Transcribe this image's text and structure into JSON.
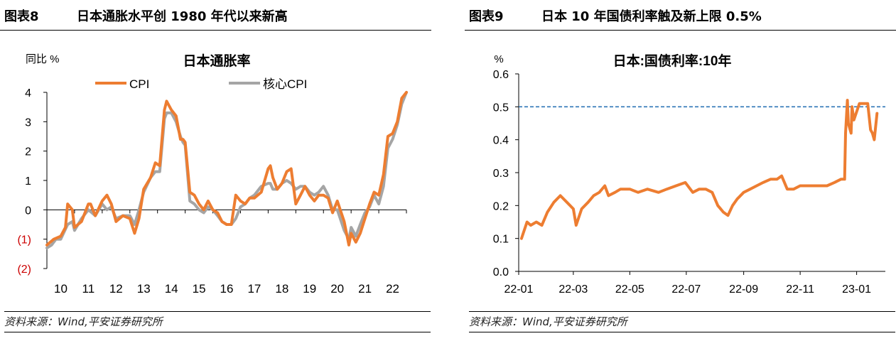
{
  "figures": [
    {
      "number": "图表8",
      "title": "日本通胀水平创 1980 年代以来新高",
      "source": "资料来源：Wind,平安证券研究所"
    },
    {
      "number": "图表9",
      "title": "日本 10 年国债利率触及新上限 0.5%",
      "source": "资料来源：Wind,平安证券研究所"
    }
  ],
  "chart_data": [
    {
      "type": "line",
      "title": "日本通胀率",
      "ylabel": "同比 %",
      "ylim": [
        -2,
        4
      ],
      "yticks": [
        -2,
        -1,
        0,
        1,
        2,
        3,
        4
      ],
      "ytick_labels": [
        "(2)",
        "(1)",
        "0",
        "1",
        "2",
        "3",
        "4"
      ],
      "negative_tick_color": "#cc0000",
      "xlim": [
        2010,
        2023
      ],
      "xticks": [
        2010,
        2011,
        2012,
        2013,
        2014,
        2015,
        2016,
        2017,
        2018,
        2019,
        2020,
        2021,
        2022
      ],
      "xtick_labels": [
        "10",
        "11",
        "12",
        "13",
        "14",
        "15",
        "16",
        "17",
        "18",
        "19",
        "20",
        "21",
        "22"
      ],
      "legend_position": "top",
      "grid": false,
      "series": [
        {
          "name": "CPI",
          "color": "#ED7D31",
          "points": [
            [
              2010.0,
              -1.2
            ],
            [
              2010.25,
              -1.0
            ],
            [
              2010.5,
              -0.9
            ],
            [
              2010.67,
              -0.6
            ],
            [
              2010.75,
              0.2
            ],
            [
              2010.92,
              0.0
            ],
            [
              2011.0,
              -0.6
            ],
            [
              2011.25,
              -0.4
            ],
            [
              2011.5,
              0.2
            ],
            [
              2011.58,
              0.2
            ],
            [
              2011.75,
              -0.2
            ],
            [
              2012.0,
              0.3
            ],
            [
              2012.17,
              0.5
            ],
            [
              2012.33,
              0.2
            ],
            [
              2012.5,
              -0.4
            ],
            [
              2012.75,
              -0.2
            ],
            [
              2013.0,
              -0.3
            ],
            [
              2013.17,
              -0.8
            ],
            [
              2013.33,
              -0.3
            ],
            [
              2013.5,
              0.7
            ],
            [
              2013.75,
              1.1
            ],
            [
              2013.92,
              1.6
            ],
            [
              2014.08,
              1.5
            ],
            [
              2014.25,
              3.4
            ],
            [
              2014.33,
              3.7
            ],
            [
              2014.5,
              3.4
            ],
            [
              2014.67,
              3.2
            ],
            [
              2014.83,
              2.4
            ],
            [
              2014.92,
              2.4
            ],
            [
              2015.0,
              2.3
            ],
            [
              2015.17,
              0.6
            ],
            [
              2015.33,
              0.5
            ],
            [
              2015.5,
              0.2
            ],
            [
              2015.67,
              0.0
            ],
            [
              2015.83,
              0.3
            ],
            [
              2016.0,
              0.0
            ],
            [
              2016.17,
              -0.1
            ],
            [
              2016.33,
              -0.4
            ],
            [
              2016.5,
              -0.5
            ],
            [
              2016.67,
              -0.5
            ],
            [
              2016.83,
              0.5
            ],
            [
              2017.0,
              0.3
            ],
            [
              2017.17,
              0.2
            ],
            [
              2017.33,
              0.4
            ],
            [
              2017.5,
              0.4
            ],
            [
              2017.75,
              0.6
            ],
            [
              2018.0,
              1.4
            ],
            [
              2018.08,
              1.5
            ],
            [
              2018.17,
              1.1
            ],
            [
              2018.33,
              0.7
            ],
            [
              2018.5,
              0.9
            ],
            [
              2018.67,
              1.3
            ],
            [
              2018.83,
              1.4
            ],
            [
              2019.0,
              0.2
            ],
            [
              2019.17,
              0.5
            ],
            [
              2019.33,
              0.8
            ],
            [
              2019.5,
              0.5
            ],
            [
              2019.67,
              0.3
            ],
            [
              2019.83,
              0.5
            ],
            [
              2020.0,
              0.5
            ],
            [
              2020.17,
              0.4
            ],
            [
              2020.33,
              -0.1
            ],
            [
              2020.5,
              0.3
            ],
            [
              2020.75,
              -0.4
            ],
            [
              2020.92,
              -1.2
            ],
            [
              2021.0,
              -0.8
            ],
            [
              2021.17,
              -1.1
            ],
            [
              2021.33,
              -0.8
            ],
            [
              2021.5,
              -0.3
            ],
            [
              2021.67,
              0.2
            ],
            [
              2021.83,
              0.6
            ],
            [
              2022.0,
              0.5
            ],
            [
              2022.17,
              1.2
            ],
            [
              2022.33,
              2.5
            ],
            [
              2022.5,
              2.6
            ],
            [
              2022.67,
              3.0
            ],
            [
              2022.83,
              3.8
            ],
            [
              2023.0,
              4.0
            ]
          ]
        },
        {
          "name": "核心CPI",
          "color": "#A5A5A5",
          "points": [
            [
              2010.0,
              -1.3
            ],
            [
              2010.17,
              -1.2
            ],
            [
              2010.33,
              -1.0
            ],
            [
              2010.5,
              -1.0
            ],
            [
              2010.75,
              -0.5
            ],
            [
              2010.92,
              -0.4
            ],
            [
              2011.0,
              -0.7
            ],
            [
              2011.25,
              -0.3
            ],
            [
              2011.5,
              0.0
            ],
            [
              2011.75,
              -0.2
            ],
            [
              2012.0,
              0.2
            ],
            [
              2012.17,
              0.0
            ],
            [
              2012.33,
              0.1
            ],
            [
              2012.5,
              -0.3
            ],
            [
              2012.75,
              -0.2
            ],
            [
              2013.0,
              -0.2
            ],
            [
              2013.17,
              -0.5
            ],
            [
              2013.33,
              0.0
            ],
            [
              2013.5,
              0.6
            ],
            [
              2013.75,
              1.1
            ],
            [
              2013.92,
              1.3
            ],
            [
              2014.08,
              1.3
            ],
            [
              2014.25,
              3.1
            ],
            [
              2014.33,
              3.3
            ],
            [
              2014.5,
              3.3
            ],
            [
              2014.67,
              3.0
            ],
            [
              2014.83,
              2.5
            ],
            [
              2014.92,
              2.3
            ],
            [
              2015.0,
              2.2
            ],
            [
              2015.17,
              0.3
            ],
            [
              2015.33,
              0.2
            ],
            [
              2015.5,
              0.0
            ],
            [
              2015.67,
              -0.1
            ],
            [
              2015.83,
              0.1
            ],
            [
              2016.0,
              0.0
            ],
            [
              2016.17,
              -0.2
            ],
            [
              2016.33,
              -0.4
            ],
            [
              2016.5,
              -0.5
            ],
            [
              2016.67,
              -0.5
            ],
            [
              2016.83,
              -0.3
            ],
            [
              2017.0,
              0.1
            ],
            [
              2017.17,
              0.2
            ],
            [
              2017.33,
              0.4
            ],
            [
              2017.5,
              0.5
            ],
            [
              2017.75,
              0.8
            ],
            [
              2018.0,
              0.9
            ],
            [
              2018.08,
              0.9
            ],
            [
              2018.17,
              0.7
            ],
            [
              2018.33,
              0.7
            ],
            [
              2018.5,
              0.9
            ],
            [
              2018.67,
              1.0
            ],
            [
              2018.83,
              0.9
            ],
            [
              2019.0,
              0.7
            ],
            [
              2019.17,
              0.8
            ],
            [
              2019.33,
              0.8
            ],
            [
              2019.5,
              0.6
            ],
            [
              2019.67,
              0.5
            ],
            [
              2019.83,
              0.6
            ],
            [
              2020.0,
              0.8
            ],
            [
              2020.17,
              0.5
            ],
            [
              2020.33,
              0.0
            ],
            [
              2020.5,
              0.0
            ],
            [
              2020.75,
              -0.7
            ],
            [
              2020.92,
              -1.0
            ],
            [
              2021.0,
              -0.6
            ],
            [
              2021.17,
              -0.9
            ],
            [
              2021.33,
              -0.5
            ],
            [
              2021.5,
              -0.1
            ],
            [
              2021.67,
              0.1
            ],
            [
              2021.83,
              0.5
            ],
            [
              2022.0,
              0.2
            ],
            [
              2022.17,
              0.8
            ],
            [
              2022.33,
              2.1
            ],
            [
              2022.5,
              2.4
            ],
            [
              2022.67,
              2.9
            ],
            [
              2022.83,
              3.6
            ],
            [
              2023.0,
              4.0
            ]
          ]
        }
      ]
    },
    {
      "type": "line",
      "title": "日本:国债利率:10年",
      "ylabel": "%",
      "ylim": [
        0.0,
        0.6
      ],
      "yticks": [
        0.0,
        0.1,
        0.2,
        0.3,
        0.4,
        0.5,
        0.6
      ],
      "ytick_labels": [
        "0.0",
        "0.1",
        "0.2",
        "0.3",
        "0.4",
        "0.5",
        "0.6"
      ],
      "xlim": [
        "2022-01-01",
        "2023-02-01"
      ],
      "xticks": [
        "2022-01-01",
        "2022-03-01",
        "2022-05-01",
        "2022-07-01",
        "2022-09-01",
        "2022-11-01",
        "2023-01-01"
      ],
      "xtick_labels": [
        "22-01",
        "22-03",
        "22-05",
        "22-07",
        "22-09",
        "22-11",
        "23-01"
      ],
      "grid": false,
      "reference_line": {
        "value": 0.5,
        "color": "#2E75B6",
        "style": "dashed"
      },
      "series": [
        {
          "name": "",
          "color": "#ED7D31",
          "points": [
            [
              "2022-01-04",
              0.1
            ],
            [
              "2022-01-10",
              0.15
            ],
            [
              "2022-01-14",
              0.14
            ],
            [
              "2022-01-20",
              0.15
            ],
            [
              "2022-01-26",
              0.14
            ],
            [
              "2022-02-01",
              0.18
            ],
            [
              "2022-02-08",
              0.21
            ],
            [
              "2022-02-15",
              0.23
            ],
            [
              "2022-02-22",
              0.21
            ],
            [
              "2022-03-01",
              0.19
            ],
            [
              "2022-03-04",
              0.14
            ],
            [
              "2022-03-10",
              0.19
            ],
            [
              "2022-03-17",
              0.21
            ],
            [
              "2022-03-23",
              0.23
            ],
            [
              "2022-03-29",
              0.24
            ],
            [
              "2022-04-04",
              0.26
            ],
            [
              "2022-04-08",
              0.23
            ],
            [
              "2022-04-15",
              0.24
            ],
            [
              "2022-04-21",
              0.25
            ],
            [
              "2022-05-01",
              0.25
            ],
            [
              "2022-05-10",
              0.24
            ],
            [
              "2022-05-20",
              0.25
            ],
            [
              "2022-06-01",
              0.24
            ],
            [
              "2022-06-10",
              0.25
            ],
            [
              "2022-06-20",
              0.26
            ],
            [
              "2022-06-30",
              0.27
            ],
            [
              "2022-07-08",
              0.24
            ],
            [
              "2022-07-15",
              0.25
            ],
            [
              "2022-07-22",
              0.25
            ],
            [
              "2022-07-29",
              0.24
            ],
            [
              "2022-08-04",
              0.2
            ],
            [
              "2022-08-10",
              0.18
            ],
            [
              "2022-08-15",
              0.17
            ],
            [
              "2022-08-20",
              0.2
            ],
            [
              "2022-08-25",
              0.22
            ],
            [
              "2022-09-01",
              0.24
            ],
            [
              "2022-09-08",
              0.25
            ],
            [
              "2022-09-15",
              0.26
            ],
            [
              "2022-09-22",
              0.27
            ],
            [
              "2022-09-30",
              0.28
            ],
            [
              "2022-10-07",
              0.28
            ],
            [
              "2022-10-12",
              0.29
            ],
            [
              "2022-10-18",
              0.25
            ],
            [
              "2022-10-25",
              0.25
            ],
            [
              "2022-11-01",
              0.26
            ],
            [
              "2022-11-10",
              0.26
            ],
            [
              "2022-11-20",
              0.26
            ],
            [
              "2022-11-30",
              0.26
            ],
            [
              "2022-12-08",
              0.27
            ],
            [
              "2022-12-15",
              0.28
            ],
            [
              "2022-12-19",
              0.28
            ],
            [
              "2022-12-20",
              0.42
            ],
            [
              "2022-12-22",
              0.52
            ],
            [
              "2022-12-23",
              0.45
            ],
            [
              "2022-12-26",
              0.42
            ],
            [
              "2022-12-27",
              0.5
            ],
            [
              "2022-12-29",
              0.46
            ],
            [
              "2023-01-04",
              0.51
            ],
            [
              "2023-01-10",
              0.51
            ],
            [
              "2023-01-13",
              0.51
            ],
            [
              "2023-01-16",
              0.43
            ],
            [
              "2023-01-18",
              0.42
            ],
            [
              "2023-01-20",
              0.4
            ],
            [
              "2023-01-23",
              0.48
            ]
          ]
        }
      ]
    }
  ]
}
